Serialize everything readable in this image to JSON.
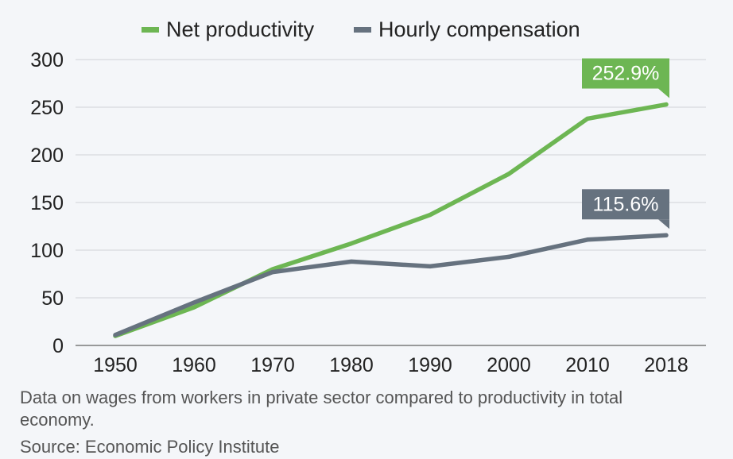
{
  "chart_data": {
    "type": "line",
    "x": [
      "1950",
      "1960",
      "1970",
      "1980",
      "1990",
      "2000",
      "2010",
      "2018"
    ],
    "series": [
      {
        "name": "Net productivity",
        "color": "#6db653",
        "values": [
          10,
          40,
          80,
          107,
          137,
          180,
          238,
          252.9
        ],
        "end_label": "252.9%"
      },
      {
        "name": "Hourly compensation",
        "color": "#66727f",
        "values": [
          11,
          45,
          77,
          88,
          83,
          93,
          111,
          115.6
        ],
        "end_label": "115.6%"
      }
    ],
    "ylim": [
      0,
      300
    ],
    "yticks": [
      "0",
      "50",
      "100",
      "150",
      "200",
      "250",
      "300"
    ],
    "grid": true,
    "legend_position": "top"
  },
  "notes": {
    "description": "Data on wages from workers in private sector compared to productivity in total economy.",
    "source": "Source: Economic Policy Institute"
  }
}
